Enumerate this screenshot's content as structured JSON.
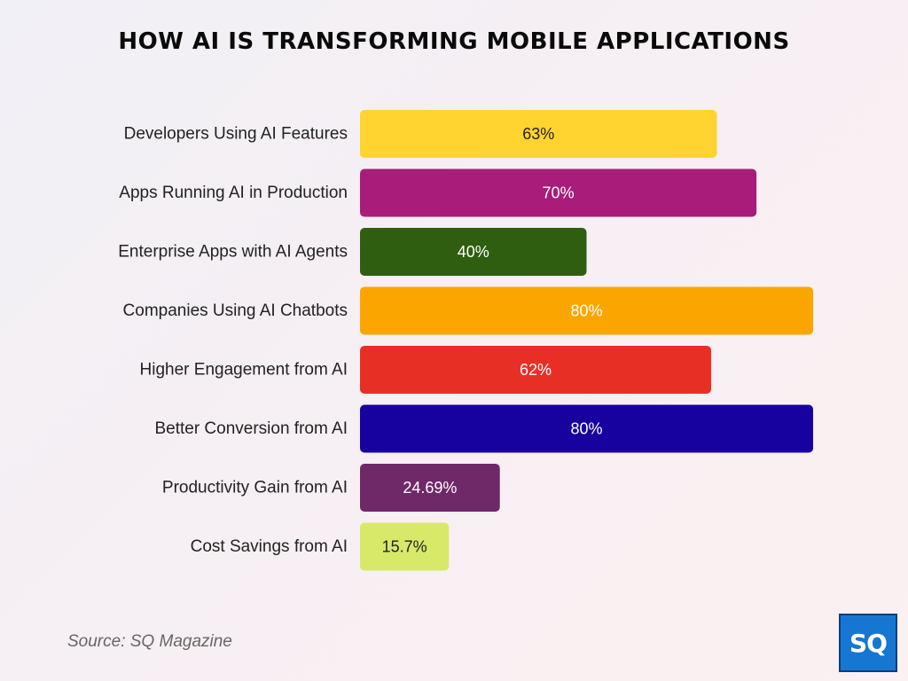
{
  "chart_data": {
    "type": "bar",
    "orientation": "horizontal",
    "title": "HOW AI IS TRANSFORMING MOBILE APPLICATIONS",
    "categories": [
      "Developers Using AI Features",
      "Apps Running AI in Production",
      "Enterprise Apps with AI Agents",
      "Companies Using AI Chatbots",
      "Higher Engagement from AI",
      "Better Conversion from AI",
      "Productivity Gain from AI",
      "Cost Savings from AI"
    ],
    "values": [
      63,
      70,
      40,
      80,
      62,
      80,
      24.69,
      15.7
    ],
    "value_labels": [
      "63%",
      "70%",
      "40%",
      "80%",
      "62%",
      "80%",
      "24.69%",
      "15.7%"
    ],
    "colors": [
      "#ffd330",
      "#a91c79",
      "#2f5e10",
      "#fba500",
      "#e82f25",
      "#17019f",
      "#6f2868",
      "#d8e96a"
    ],
    "label_colors": [
      "#222222",
      "#ffffff",
      "#ffffff",
      "#ffffff",
      "#ffffff",
      "#ffffff",
      "#ffffff",
      "#222222"
    ],
    "xlim": [
      0,
      80
    ],
    "grid": false,
    "legend": "none"
  },
  "source": "Source: SQ Magazine",
  "logo_text": "SQ"
}
